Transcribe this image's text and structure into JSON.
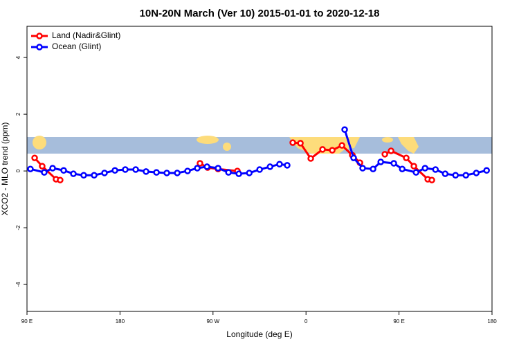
{
  "chart_data": {
    "type": "line",
    "title": "10N-20N March (Ver 10)   2015-01-01 to 2020-12-18",
    "xlabel": "Longitude (deg E)",
    "ylabel": "XCO2 - MLO trend (ppm)",
    "xlim": [
      90,
      540
    ],
    "ylim": [
      -4.95,
      5.1
    ],
    "xticks": [
      {
        "value": 90,
        "label": "90 E"
      },
      180,
      {
        "value": 270,
        "label": "90 W"
      },
      {
        "value": 360,
        "label": "0"
      },
      {
        "value": 450,
        "label": "90 E"
      },
      {
        "value": 540,
        "label": "180"
      }
    ],
    "yticks": [
      -4,
      -2,
      0,
      2,
      4
    ],
    "legend": "top-left",
    "series": [
      {
        "name": "Land (Nadir&Glint)",
        "color": "#ff0000",
        "x": [
          97.4,
          104.7,
          118.1,
          122.1,
          null,
          257.4,
          264.8,
          274.9,
          293.6,
          null,
          347.2,
          354.6,
          364.6,
          376.0,
          385.4,
          394.8,
          404.8,
          412.2,
          null,
          436.3,
          442.3,
          457.0,
          464.4,
          477.8,
          481.8
        ],
        "values": [
          0.46,
          0.17,
          -0.29,
          -0.32,
          null,
          0.27,
          0.12,
          0.07,
          0.0,
          null,
          1.0,
          0.98,
          0.44,
          0.76,
          0.73,
          0.9,
          0.56,
          0.29,
          null,
          0.59,
          0.71,
          0.46,
          0.17,
          -0.29,
          -0.32
        ]
      },
      {
        "name": "Ocean (Glint)",
        "color": "#0000ff",
        "x": [
          93.3,
          106.7,
          114.8,
          125.5,
          134.9,
          144.9,
          155.0,
          165.0,
          175.1,
          185.1,
          195.2,
          205.2,
          215.3,
          225.3,
          235.4,
          245.4,
          254.8,
          264.2,
          274.9,
          285.0,
          295.0,
          305.1,
          315.1,
          325.2,
          334.4,
          341.8,
          null,
          397.4,
          406.1,
          414.8,
          424.9,
          432.3,
          445.0,
          453.1,
          466.5,
          475.2,
          485.3,
          494.7,
          504.7,
          514.7,
          524.8,
          534.8
        ],
        "values": [
          0.07,
          -0.05,
          0.1,
          0.02,
          -0.1,
          -0.15,
          -0.15,
          -0.07,
          0.02,
          0.05,
          0.05,
          -0.02,
          -0.05,
          -0.07,
          -0.07,
          0.0,
          0.1,
          0.15,
          0.1,
          -0.05,
          -0.1,
          -0.07,
          0.05,
          0.15,
          0.24,
          0.2,
          null,
          1.46,
          0.46,
          0.1,
          0.07,
          0.32,
          0.27,
          0.07,
          -0.05,
          0.1,
          0.05,
          -0.1,
          -0.15,
          -0.15,
          -0.07,
          0.02
        ]
      }
    ]
  }
}
